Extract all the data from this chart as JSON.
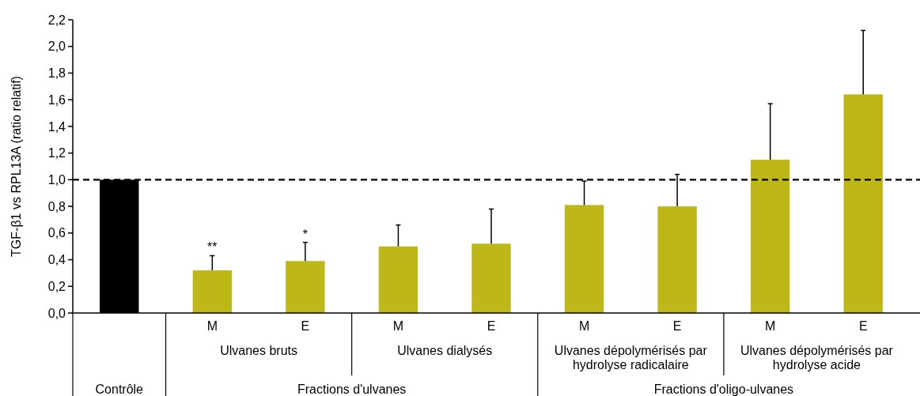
{
  "chart_data": {
    "type": "bar",
    "ylabel": "TGF-β1 vs RPL13A (ratio relatif)",
    "categories": [
      null,
      "M",
      "E",
      "M",
      "E",
      "M",
      "E",
      "M",
      "E"
    ],
    "values": [
      1.0,
      0.32,
      0.39,
      0.5,
      0.52,
      0.81,
      0.8,
      1.15,
      1.64
    ],
    "colors": [
      "#000000",
      "#bdb817",
      "#bdb817",
      "#bdb817",
      "#bdb817",
      "#bdb817",
      "#bdb817",
      "#bdb817",
      "#bdb817"
    ],
    "errors": [
      null,
      [
        0.32,
        0.43
      ],
      [
        0.39,
        0.53
      ],
      [
        0.5,
        0.66
      ],
      [
        0.52,
        0.78
      ],
      [
        0.81,
        0.99
      ],
      [
        0.8,
        1.04
      ],
      [
        1.15,
        1.57
      ],
      [
        1.64,
        2.12
      ]
    ],
    "ylim": [
      0,
      2.2
    ],
    "yticks": [
      {
        "value": 0,
        "label": "0,0"
      },
      {
        "value": 0.2,
        "label": "0,2"
      },
      {
        "value": 0.4,
        "label": "0,4"
      },
      {
        "value": 0.6,
        "label": "0,6"
      },
      {
        "value": 0.8,
        "label": "0,8"
      },
      {
        "value": 1,
        "label": "1,0"
      },
      {
        "value": 1.2,
        "label": "1,2"
      },
      {
        "value": 1.4,
        "label": "1,4"
      },
      {
        "value": 1.6,
        "label": "1,6"
      },
      {
        "value": 1.8,
        "label": "1,8"
      },
      {
        "value": 2,
        "label": "2,0"
      },
      {
        "value": 2.2,
        "label": "2,2"
      }
    ],
    "ref_lines": [
      {
        "axis": "y",
        "value": 1,
        "color": "#000000",
        "line_style": "dashed"
      }
    ],
    "annotations": [
      "Contrôle",
      "Ulvanes bruts",
      "Ulvanes dialysés",
      "Ulvanes dépolymérisés par hydrolyse radicalaire",
      "Ulvanes dépolymérisés par hydrolyse acide",
      "Fractions d'ulvanes",
      "Fractions d'oligo-ulvanes",
      {
        "text": "**",
        "y": 0.43
      },
      {
        "text": "*",
        "y": 0.53
      }
    ],
    "grid": false
  }
}
